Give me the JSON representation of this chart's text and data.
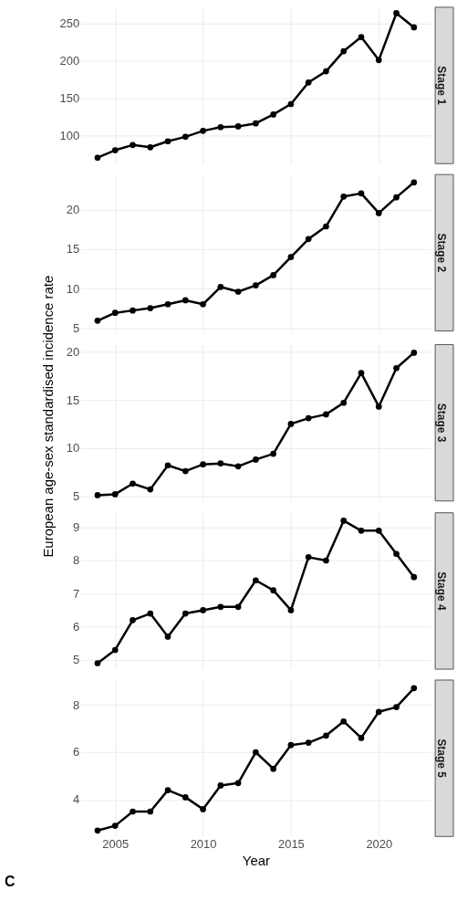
{
  "chart_data": [
    {
      "type": "line",
      "title": "Stage 1",
      "x": [
        2004,
        2005,
        2006,
        2007,
        2008,
        2009,
        2010,
        2011,
        2012,
        2013,
        2014,
        2015,
        2016,
        2017,
        2018,
        2019,
        2020,
        2021,
        2022
      ],
      "series": [
        {
          "color": "#000000",
          "values": [
            70,
            80,
            87,
            84,
            92,
            98,
            106,
            111,
            112,
            116,
            128,
            142,
            171,
            186,
            213,
            232,
            201,
            264,
            245
          ]
        }
      ],
      "xlim": [
        2003.05,
        2022.95
      ],
      "xticks": [
        2005,
        2010,
        2015,
        2020
      ],
      "ylim": [
        62,
        272
      ],
      "yticks": [
        100,
        150,
        200,
        250
      ],
      "grid": true,
      "marker": "circle",
      "tick_labels": "y"
    },
    {
      "type": "line",
      "title": "Stage 2",
      "x": [
        2004,
        2005,
        2006,
        2007,
        2008,
        2009,
        2010,
        2011,
        2012,
        2013,
        2014,
        2015,
        2016,
        2017,
        2018,
        2019,
        2020,
        2021,
        2022
      ],
      "series": [
        {
          "color": "#000000",
          "values": [
            5.9,
            6.9,
            7.2,
            7.5,
            8.0,
            8.5,
            8.0,
            10.2,
            9.6,
            10.4,
            11.7,
            14.0,
            16.3,
            17.9,
            21.7,
            22.1,
            19.6,
            21.6,
            23.5
          ]
        }
      ],
      "xlim": [
        2003.05,
        2022.95
      ],
      "xticks": [
        2005,
        2010,
        2015,
        2020
      ],
      "ylim": [
        4.6,
        24.5
      ],
      "yticks": [
        5,
        10,
        15,
        20
      ],
      "grid": true,
      "marker": "circle",
      "tick_labels": "y"
    },
    {
      "type": "line",
      "title": "Stage 3",
      "ylabel": "European age-sex standardised incidence rate",
      "x": [
        2004,
        2005,
        2006,
        2007,
        2008,
        2009,
        2010,
        2011,
        2012,
        2013,
        2014,
        2015,
        2016,
        2017,
        2018,
        2019,
        2020,
        2021,
        2022
      ],
      "series": [
        {
          "color": "#000000",
          "values": [
            5.1,
            5.2,
            6.3,
            5.7,
            8.2,
            7.6,
            8.3,
            8.4,
            8.1,
            8.8,
            9.4,
            12.5,
            13.1,
            13.5,
            14.7,
            17.8,
            14.3,
            18.3,
            19.9
          ]
        }
      ],
      "xlim": [
        2003.05,
        2022.95
      ],
      "xticks": [
        2005,
        2010,
        2015,
        2020
      ],
      "ylim": [
        4.5,
        20.75
      ],
      "yticks": [
        5,
        10,
        15,
        20
      ],
      "grid": true,
      "marker": "circle",
      "tick_labels": "y"
    },
    {
      "type": "line",
      "title": "Stage 4",
      "x": [
        2004,
        2005,
        2006,
        2007,
        2008,
        2009,
        2010,
        2011,
        2012,
        2013,
        2014,
        2015,
        2016,
        2017,
        2018,
        2019,
        2020,
        2021,
        2022
      ],
      "series": [
        {
          "color": "#000000",
          "values": [
            4.9,
            5.3,
            6.2,
            6.4,
            5.7,
            6.4,
            6.5,
            6.6,
            6.6,
            7.4,
            7.1,
            6.5,
            8.1,
            8.0,
            9.2,
            8.9,
            8.9,
            8.2,
            7.5
          ]
        }
      ],
      "xlim": [
        2003.05,
        2022.95
      ],
      "xticks": [
        2005,
        2010,
        2015,
        2020
      ],
      "ylim": [
        4.72,
        9.44
      ],
      "yticks": [
        5,
        6,
        7,
        8,
        9
      ],
      "grid": true,
      "marker": "circle",
      "tick_labels": "y"
    },
    {
      "type": "line",
      "title": "Stage 5",
      "xlabel": "Year",
      "annotations": [
        "C"
      ],
      "x": [
        2004,
        2005,
        2006,
        2007,
        2008,
        2009,
        2010,
        2011,
        2012,
        2013,
        2014,
        2015,
        2016,
        2017,
        2018,
        2019,
        2020,
        2021,
        2022
      ],
      "series": [
        {
          "color": "#000000",
          "values": [
            2.7,
            2.9,
            3.5,
            3.5,
            4.4,
            4.1,
            3.6,
            4.6,
            4.7,
            6.0,
            5.3,
            6.3,
            6.4,
            6.7,
            7.3,
            6.6,
            7.7,
            7.9,
            8.7
          ]
        }
      ],
      "xlim": [
        2003.05,
        2022.95
      ],
      "xticks": [
        2005,
        2010,
        2015,
        2020
      ],
      "ylim": [
        2.45,
        9.04
      ],
      "yticks": [
        4,
        6,
        8
      ],
      "grid": true,
      "marker": "circle"
    }
  ]
}
